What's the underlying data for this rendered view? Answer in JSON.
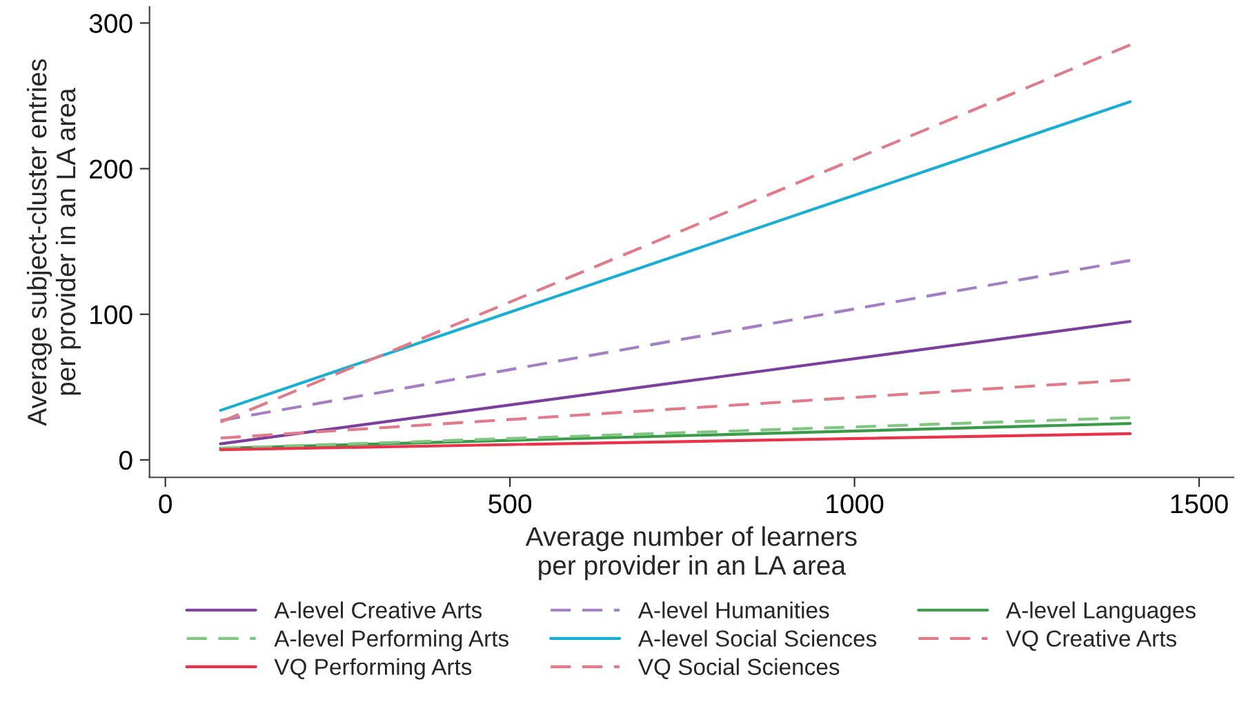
{
  "chart_data": {
    "type": "line",
    "xlabel": "Average number of learners\nper provider in an LA area",
    "ylabel": "Average subject-cluster entries\nper provider in an LA area",
    "x": [
      80,
      1400
    ],
    "series": [
      {
        "name": "A-level Creative Arts",
        "color": "#7b3f9e",
        "values": [
          11,
          95
        ],
        "line_style": "solid"
      },
      {
        "name": "A-level Humanities",
        "color": "#a57fc4",
        "values": [
          27,
          137
        ],
        "line_style": "dashed"
      },
      {
        "name": "A-level Languages",
        "color": "#3a9a4a",
        "values": [
          8,
          25
        ],
        "line_style": "solid"
      },
      {
        "name": "A-level Performing Arts",
        "color": "#80c680",
        "values": [
          8,
          29
        ],
        "line_style": "dashed"
      },
      {
        "name": "A-level Social Sciences",
        "color": "#1aaed2",
        "values": [
          34,
          246
        ],
        "line_style": "solid"
      },
      {
        "name": "VQ Creative Arts",
        "color": "#e07b8a",
        "values": [
          15,
          55
        ],
        "line_style": "dashed"
      },
      {
        "name": "VQ Performing Arts",
        "color": "#e8334a",
        "values": [
          7,
          18
        ],
        "line_style": "solid"
      },
      {
        "name": "VQ Social Sciences",
        "color": "#e07b8a",
        "values": [
          26,
          285
        ],
        "line_style": "dashed"
      }
    ],
    "xlim": [
      -23,
      1550
    ],
    "xticks": [
      0,
      500,
      1000,
      1500
    ],
    "ylim": [
      -12,
      311
    ],
    "yticks": [
      0,
      100,
      200,
      300
    ],
    "grid": false,
    "legend": "bottom",
    "marker": "none"
  }
}
